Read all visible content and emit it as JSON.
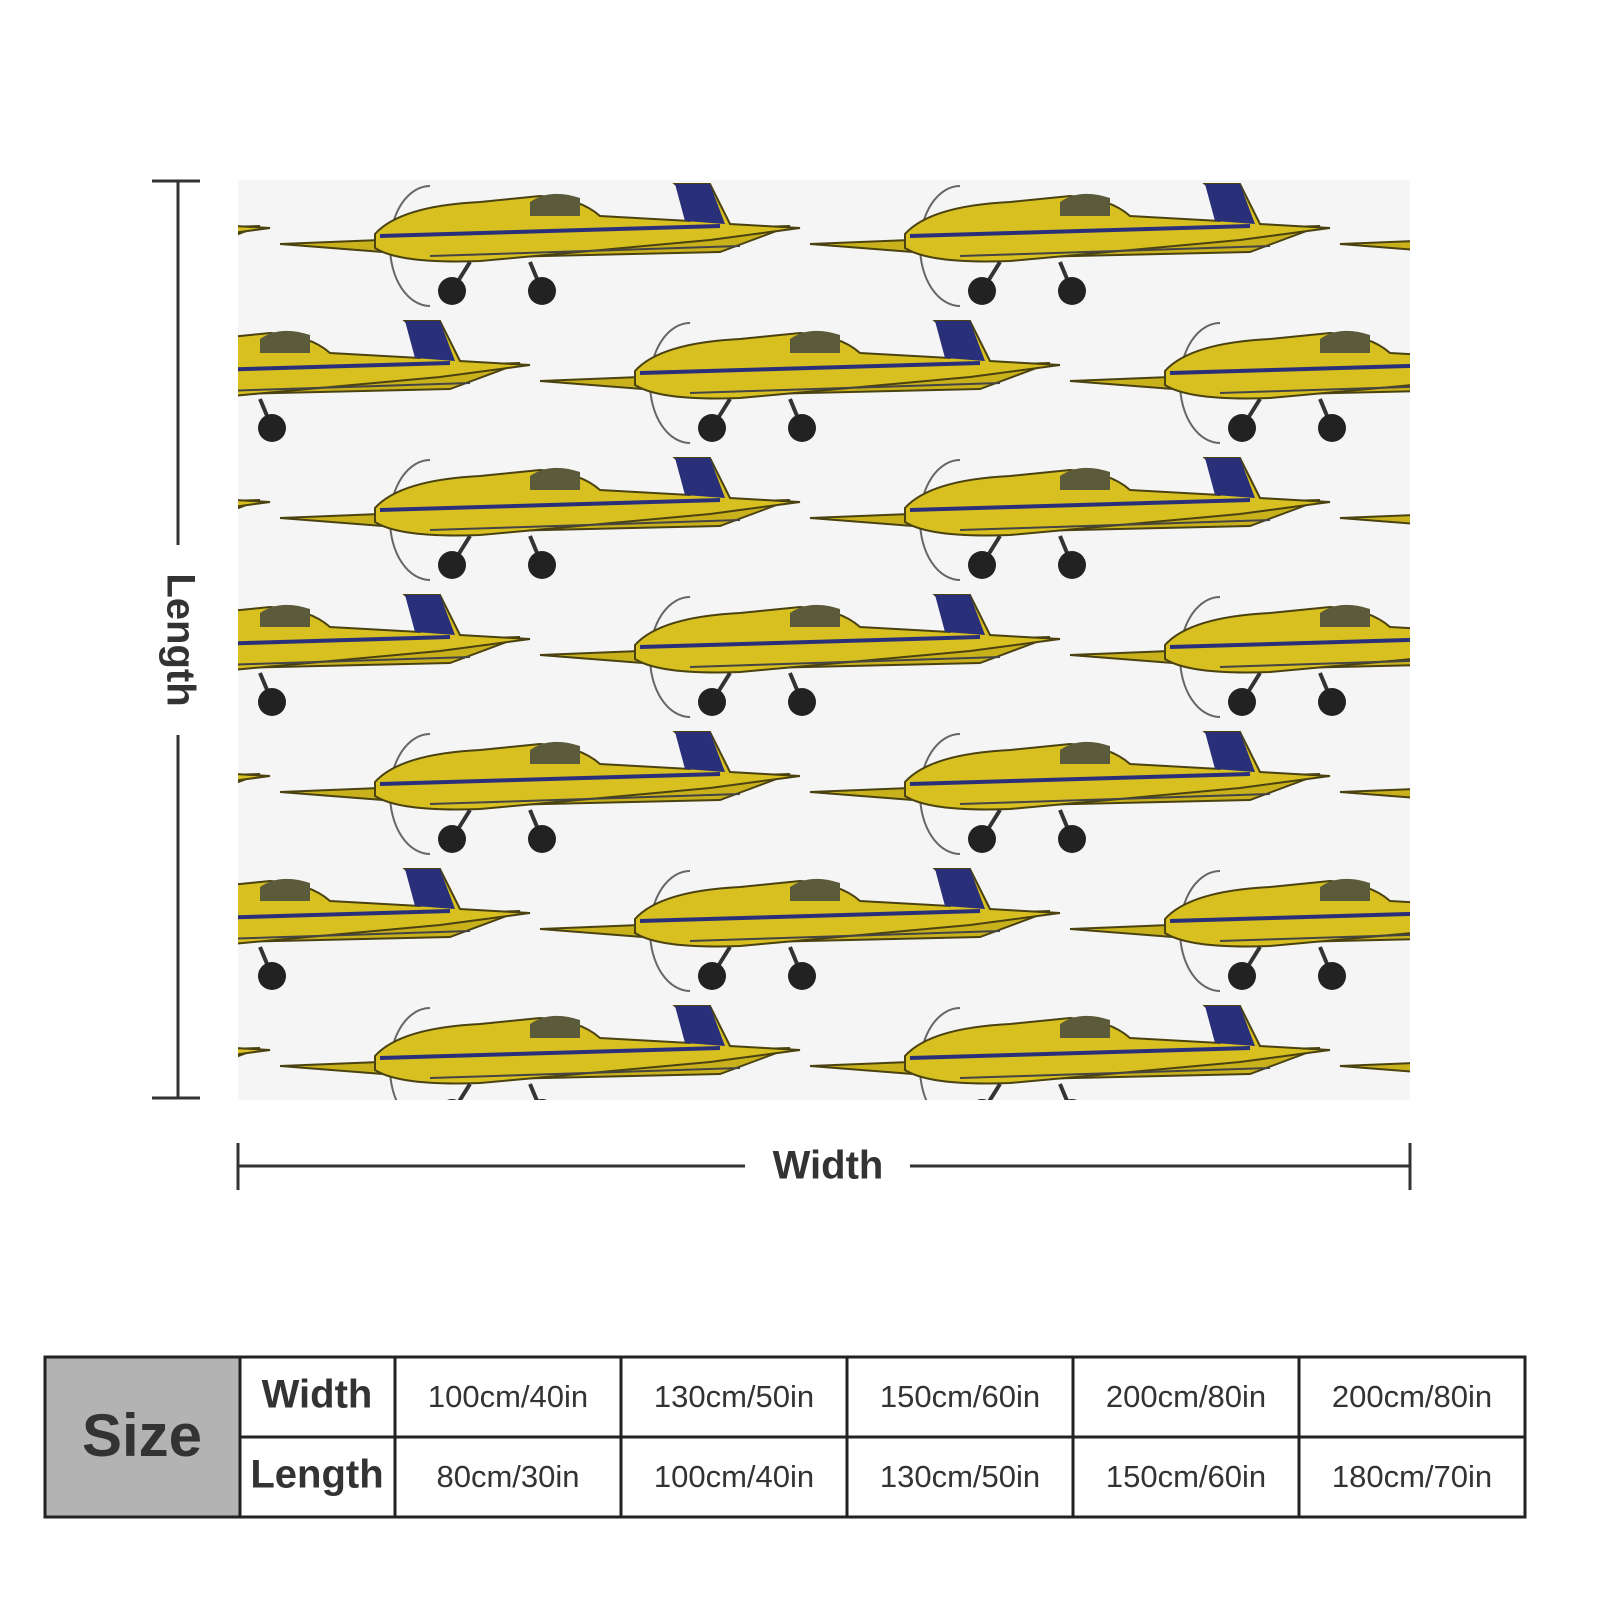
{
  "dimension_labels": {
    "length": "Length",
    "width": "Width"
  },
  "size_table": {
    "corner": "Size",
    "rows": [
      {
        "label": "Width",
        "values": [
          "100cm/40in",
          "130cm/50in",
          "150cm/60in",
          "200cm/80in",
          "200cm/80in"
        ]
      },
      {
        "label": "Length",
        "values": [
          "80cm/30in",
          "100cm/40in",
          "130cm/50in",
          "150cm/60in",
          "180cm/70in"
        ]
      }
    ]
  }
}
